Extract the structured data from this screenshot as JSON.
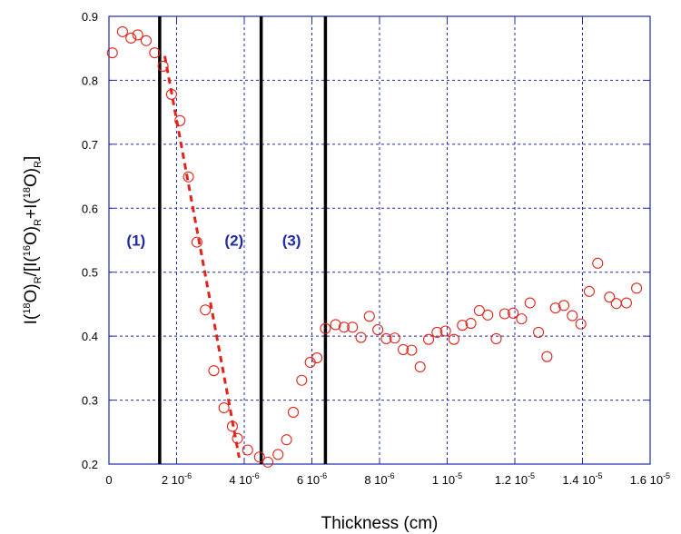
{
  "chart_data": {
    "type": "scatter",
    "xlabel": "Thickness (cm)",
    "ylabel_parts": {
      "base": "I(",
      "iso1": "18",
      "O_R": "O)",
      "R": "R",
      "slash": "/[I(",
      "iso2": "16",
      "O_R2": "O)",
      "R2": "R",
      "plus": "+I(",
      "iso3": "18",
      "O_R3": "O)",
      "R3": "R",
      "close": "]"
    },
    "xlim": [
      0,
      1.6e-05
    ],
    "ylim": [
      0.2,
      0.9
    ],
    "x_ticks": [
      {
        "value": 0,
        "label": "0"
      },
      {
        "value": 2e-06,
        "label": "2 10",
        "exp": "-6"
      },
      {
        "value": 4e-06,
        "label": "4 10",
        "exp": "-6"
      },
      {
        "value": 6e-06,
        "label": "6 10",
        "exp": "-6"
      },
      {
        "value": 8e-06,
        "label": "8 10",
        "exp": "-6"
      },
      {
        "value": 1e-05,
        "label": "1 10",
        "exp": "-5"
      },
      {
        "value": 1.2e-05,
        "label": "1.2 10",
        "exp": "-5"
      },
      {
        "value": 1.4e-05,
        "label": "1.4 10",
        "exp": "-5"
      },
      {
        "value": 1.6e-05,
        "label": "1.6 10",
        "exp": "-5"
      }
    ],
    "y_ticks": [
      {
        "value": 0.2,
        "label": "0.2"
      },
      {
        "value": 0.3,
        "label": "0.3"
      },
      {
        "value": 0.4,
        "label": "0.4"
      },
      {
        "value": 0.5,
        "label": "0.5"
      },
      {
        "value": 0.6,
        "label": "0.6"
      },
      {
        "value": 0.7,
        "label": "0.7"
      },
      {
        "value": 0.8,
        "label": "0.8"
      },
      {
        "value": 0.9,
        "label": "0.9"
      }
    ],
    "grid": true,
    "regions": [
      {
        "label": "(1)",
        "x": 8e-07,
        "y": 0.55
      },
      {
        "label": "(2)",
        "x": 3.7e-06,
        "y": 0.55
      },
      {
        "label": "(3)",
        "x": 5.4e-06,
        "y": 0.55
      }
    ],
    "boundaries": [
      1.5e-06,
      4.5e-06,
      6.4e-06
    ],
    "fit_line": [
      [
        1.65e-06,
        0.838
      ],
      [
        3.85e-06,
        0.21
      ]
    ],
    "points": [
      [
        1e-07,
        0.843
      ],
      [
        4e-07,
        0.876
      ],
      [
        6.5e-07,
        0.866
      ],
      [
        8.5e-07,
        0.871
      ],
      [
        1.1e-06,
        0.862
      ],
      [
        1.35e-06,
        0.843
      ],
      [
        1.6e-06,
        0.822
      ],
      [
        1.85e-06,
        0.778
      ],
      [
        2.1e-06,
        0.737
      ],
      [
        2.35e-06,
        0.649
      ],
      [
        2.6e-06,
        0.547
      ],
      [
        2.85e-06,
        0.441
      ],
      [
        3.1e-06,
        0.346
      ],
      [
        3.4e-06,
        0.288
      ],
      [
        3.65e-06,
        0.259
      ],
      [
        3.8e-06,
        0.24
      ],
      [
        4.1e-06,
        0.222
      ],
      [
        4.45e-06,
        0.211
      ],
      [
        4.7e-06,
        0.203
      ],
      [
        5e-06,
        0.215
      ],
      [
        5.25e-06,
        0.238
      ],
      [
        5.45e-06,
        0.281
      ],
      [
        5.7e-06,
        0.331
      ],
      [
        5.95e-06,
        0.359
      ],
      [
        6.15e-06,
        0.366
      ],
      [
        6.4e-06,
        0.412
      ],
      [
        6.7e-06,
        0.418
      ],
      [
        6.95e-06,
        0.414
      ],
      [
        7.2e-06,
        0.414
      ],
      [
        7.45e-06,
        0.398
      ],
      [
        7.7e-06,
        0.431
      ],
      [
        7.95e-06,
        0.41
      ],
      [
        8.2e-06,
        0.396
      ],
      [
        8.45e-06,
        0.397
      ],
      [
        8.7e-06,
        0.379
      ],
      [
        8.95e-06,
        0.378
      ],
      [
        9.2e-06,
        0.352
      ],
      [
        9.45e-06,
        0.395
      ],
      [
        9.7e-06,
        0.406
      ],
      [
        9.95e-06,
        0.408
      ],
      [
        1.02e-05,
        0.395
      ],
      [
        1.045e-05,
        0.417
      ],
      [
        1.07e-05,
        0.42
      ],
      [
        1.095e-05,
        0.44
      ],
      [
        1.12e-05,
        0.433
      ],
      [
        1.145e-05,
        0.396
      ],
      [
        1.17e-05,
        0.435
      ],
      [
        1.195e-05,
        0.436
      ],
      [
        1.22e-05,
        0.427
      ],
      [
        1.245e-05,
        0.452
      ],
      [
        1.27e-05,
        0.406
      ],
      [
        1.295e-05,
        0.368
      ],
      [
        1.32e-05,
        0.444
      ],
      [
        1.345e-05,
        0.448
      ],
      [
        1.37e-05,
        0.432
      ],
      [
        1.395e-05,
        0.419
      ],
      [
        1.42e-05,
        0.47
      ],
      [
        1.445e-05,
        0.514
      ],
      [
        1.48e-05,
        0.461
      ],
      [
        1.5e-05,
        0.451
      ],
      [
        1.53e-05,
        0.452
      ],
      [
        1.56e-05,
        0.475
      ]
    ],
    "colors": {
      "grid": "#1f2aa8",
      "frame": "#1f2aa8",
      "points": "#e0241c",
      "fit": "#e0241c",
      "boundaries": "#000000",
      "regions": "#1f2aa8"
    }
  }
}
